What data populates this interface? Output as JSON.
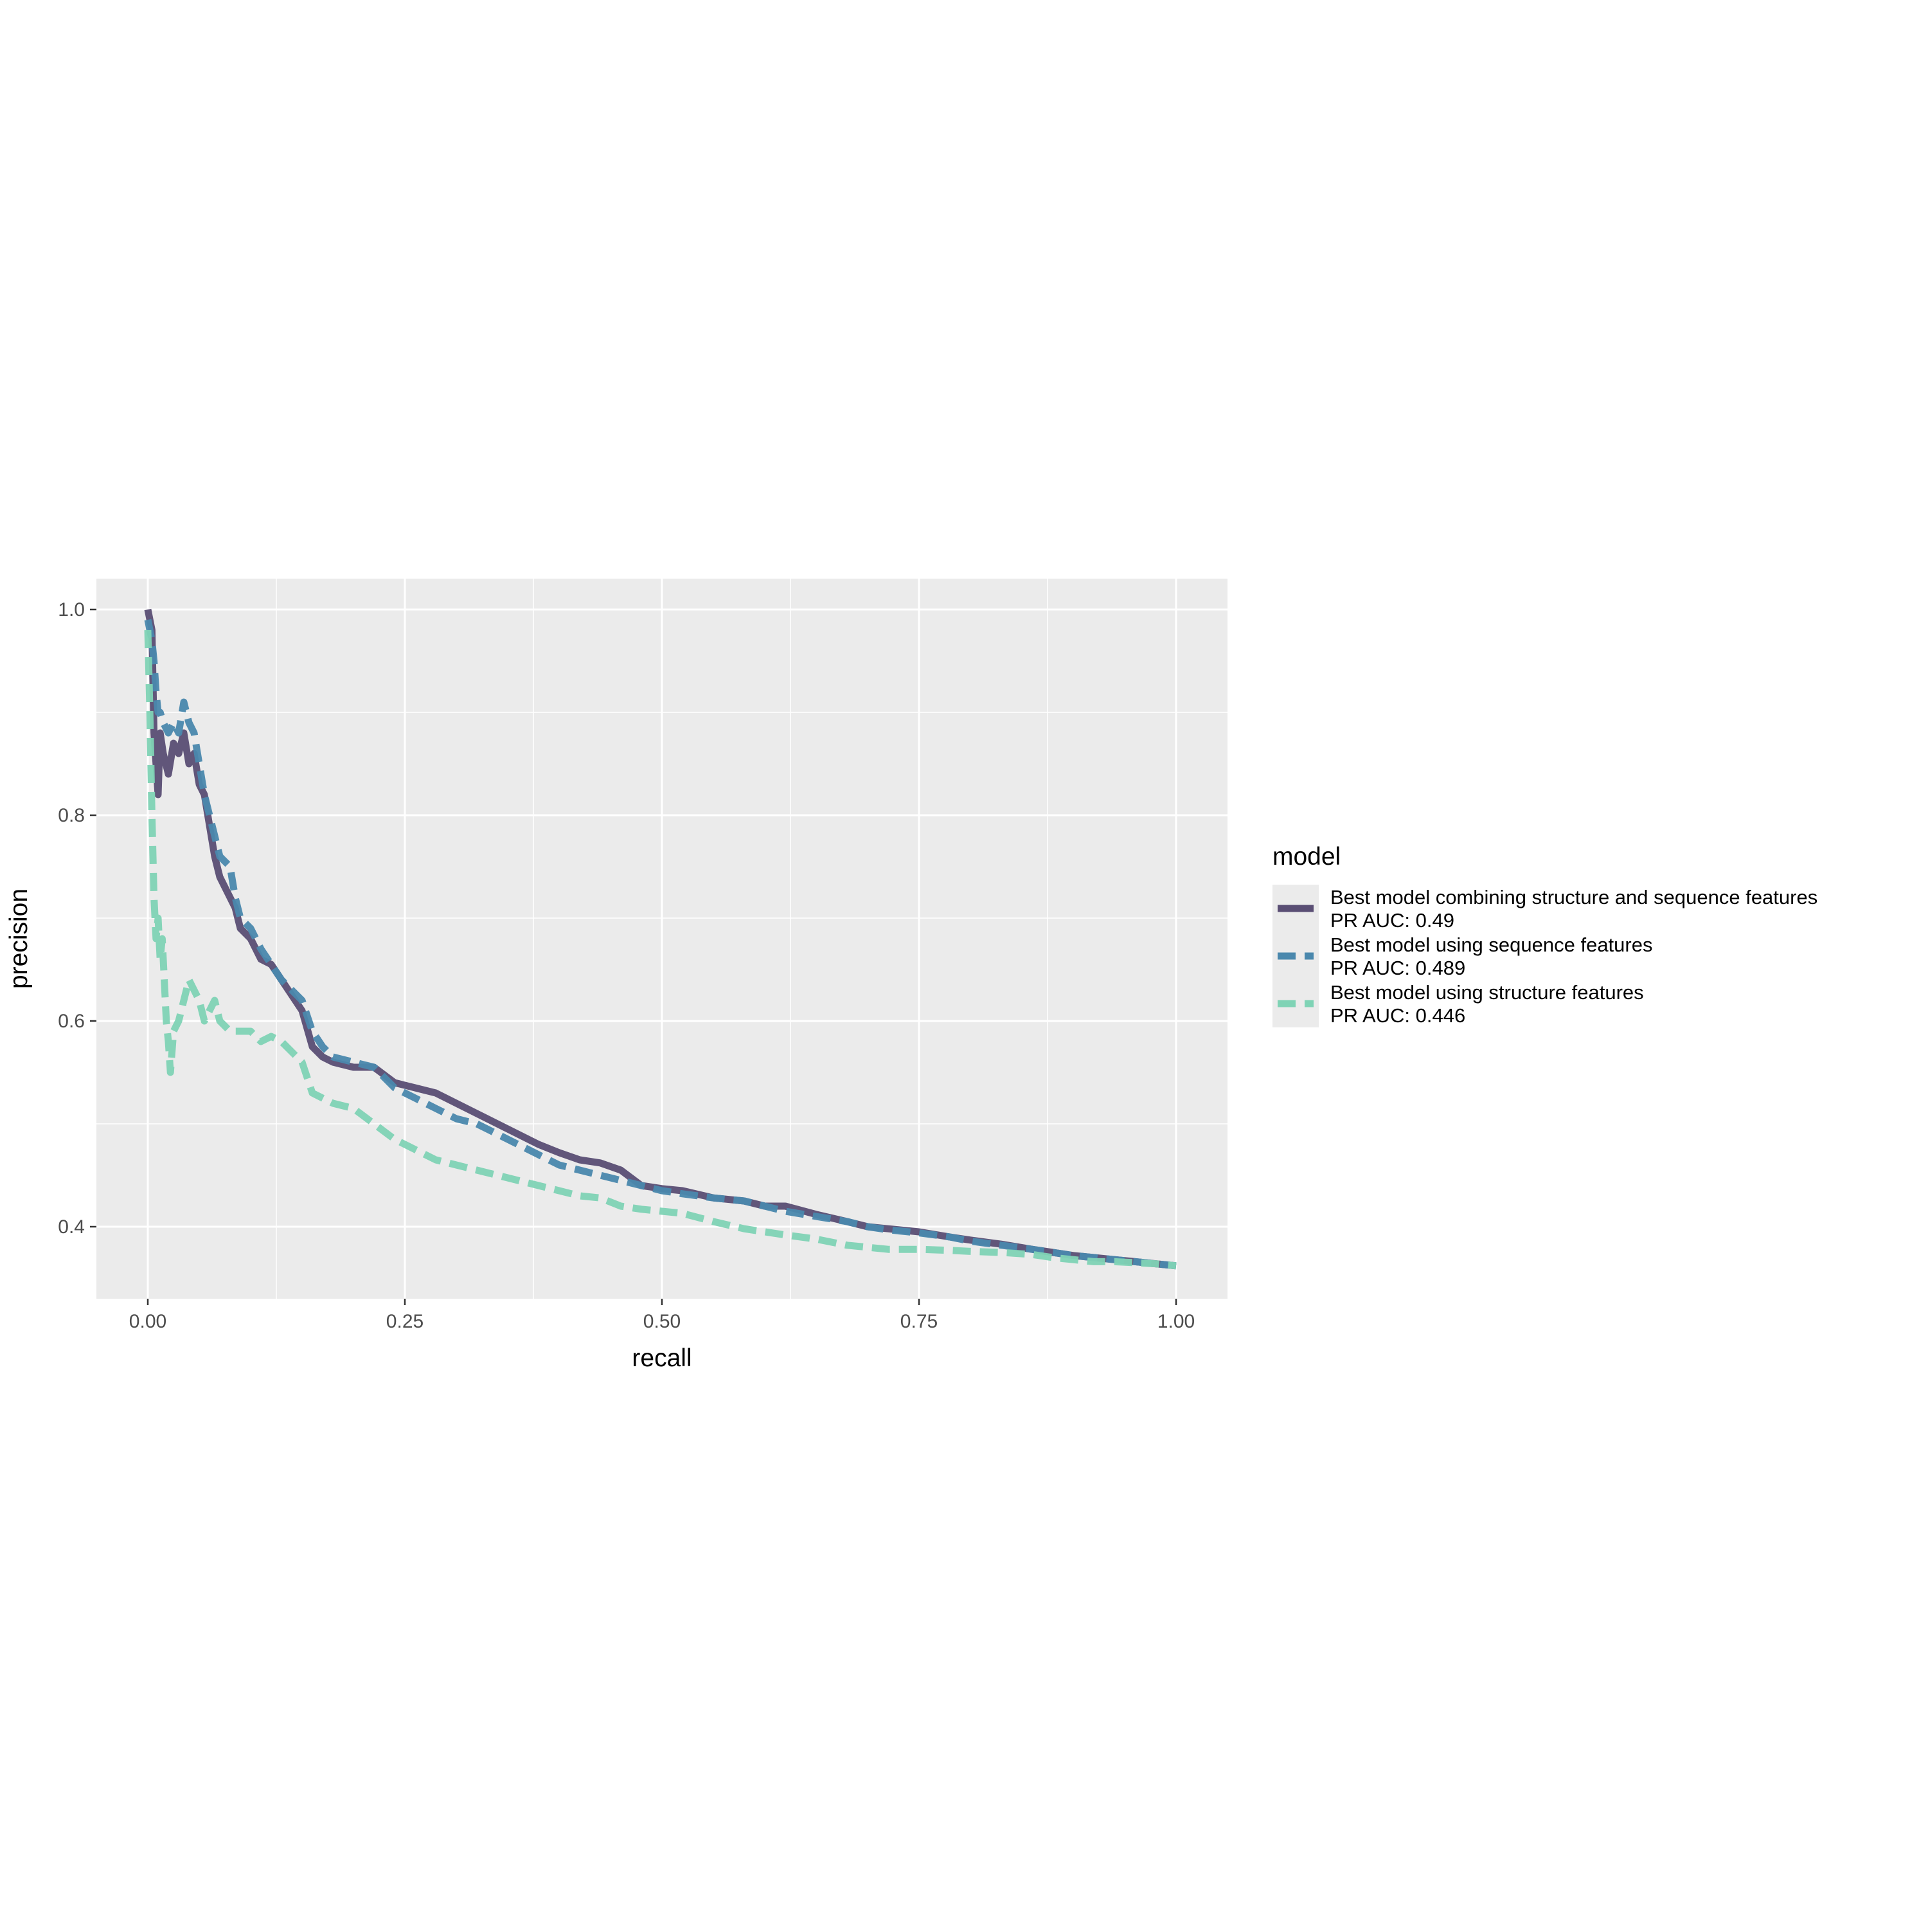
{
  "chart_data": {
    "type": "line",
    "xlabel": "recall",
    "ylabel": "precision",
    "xlim": [
      -0.05,
      1.05
    ],
    "ylim": [
      0.33,
      1.03
    ],
    "x_ticks": [
      0.0,
      0.25,
      0.5,
      0.75,
      1.0
    ],
    "x_tick_labels": [
      "0.00",
      "0.25",
      "0.50",
      "0.75",
      "1.00"
    ],
    "y_ticks": [
      0.4,
      0.6,
      0.8,
      1.0
    ],
    "y_tick_labels": [
      "0.4",
      "0.6",
      "0.8",
      "1.0"
    ],
    "grid": true,
    "background": "#ebebeb",
    "legend": {
      "title": "model",
      "placement": "right"
    },
    "series": [
      {
        "name": "Best model combining structure and sequence features",
        "auc_label": "PR AUC: 0.49",
        "color": "#5a4e74",
        "dash": "solid",
        "points": [
          [
            0.0,
            1.0
          ],
          [
            0.004,
            0.98
          ],
          [
            0.006,
            0.88
          ],
          [
            0.008,
            0.85
          ],
          [
            0.01,
            0.82
          ],
          [
            0.012,
            0.88
          ],
          [
            0.015,
            0.86
          ],
          [
            0.02,
            0.84
          ],
          [
            0.025,
            0.87
          ],
          [
            0.03,
            0.86
          ],
          [
            0.035,
            0.88
          ],
          [
            0.04,
            0.85
          ],
          [
            0.045,
            0.86
          ],
          [
            0.05,
            0.83
          ],
          [
            0.055,
            0.82
          ],
          [
            0.06,
            0.79
          ],
          [
            0.065,
            0.76
          ],
          [
            0.07,
            0.74
          ],
          [
            0.075,
            0.73
          ],
          [
            0.08,
            0.72
          ],
          [
            0.085,
            0.71
          ],
          [
            0.09,
            0.69
          ],
          [
            0.1,
            0.68
          ],
          [
            0.11,
            0.66
          ],
          [
            0.12,
            0.655
          ],
          [
            0.13,
            0.64
          ],
          [
            0.14,
            0.625
          ],
          [
            0.15,
            0.61
          ],
          [
            0.16,
            0.575
          ],
          [
            0.17,
            0.565
          ],
          [
            0.18,
            0.56
          ],
          [
            0.2,
            0.555
          ],
          [
            0.22,
            0.555
          ],
          [
            0.24,
            0.54
          ],
          [
            0.26,
            0.535
          ],
          [
            0.28,
            0.53
          ],
          [
            0.3,
            0.52
          ],
          [
            0.32,
            0.51
          ],
          [
            0.34,
            0.5
          ],
          [
            0.36,
            0.49
          ],
          [
            0.38,
            0.48
          ],
          [
            0.4,
            0.472
          ],
          [
            0.42,
            0.465
          ],
          [
            0.44,
            0.462
          ],
          [
            0.46,
            0.455
          ],
          [
            0.48,
            0.44
          ],
          [
            0.5,
            0.437
          ],
          [
            0.52,
            0.435
          ],
          [
            0.55,
            0.428
          ],
          [
            0.58,
            0.425
          ],
          [
            0.6,
            0.42
          ],
          [
            0.62,
            0.42
          ],
          [
            0.65,
            0.412
          ],
          [
            0.68,
            0.405
          ],
          [
            0.7,
            0.4
          ],
          [
            0.72,
            0.398
          ],
          [
            0.75,
            0.395
          ],
          [
            0.78,
            0.39
          ],
          [
            0.8,
            0.387
          ],
          [
            0.83,
            0.383
          ],
          [
            0.86,
            0.378
          ],
          [
            0.88,
            0.375
          ],
          [
            0.9,
            0.372
          ],
          [
            0.92,
            0.37
          ],
          [
            0.94,
            0.368
          ],
          [
            0.96,
            0.366
          ],
          [
            0.98,
            0.364
          ],
          [
            1.0,
            0.362
          ]
        ]
      },
      {
        "name": "Best model using sequence features",
        "auc_label": "PR AUC: 0.489",
        "color": "#4a88ad",
        "dash": "dashed",
        "points": [
          [
            0.0,
            0.99
          ],
          [
            0.004,
            0.97
          ],
          [
            0.006,
            0.95
          ],
          [
            0.008,
            0.92
          ],
          [
            0.01,
            0.9
          ],
          [
            0.012,
            0.9
          ],
          [
            0.015,
            0.89
          ],
          [
            0.02,
            0.88
          ],
          [
            0.025,
            0.89
          ],
          [
            0.03,
            0.88
          ],
          [
            0.035,
            0.91
          ],
          [
            0.04,
            0.89
          ],
          [
            0.045,
            0.88
          ],
          [
            0.05,
            0.85
          ],
          [
            0.055,
            0.82
          ],
          [
            0.06,
            0.8
          ],
          [
            0.065,
            0.78
          ],
          [
            0.07,
            0.76
          ],
          [
            0.075,
            0.755
          ],
          [
            0.08,
            0.75
          ],
          [
            0.085,
            0.72
          ],
          [
            0.09,
            0.7
          ],
          [
            0.1,
            0.69
          ],
          [
            0.11,
            0.67
          ],
          [
            0.12,
            0.655
          ],
          [
            0.13,
            0.64
          ],
          [
            0.14,
            0.63
          ],
          [
            0.15,
            0.62
          ],
          [
            0.16,
            0.59
          ],
          [
            0.17,
            0.575
          ],
          [
            0.18,
            0.565
          ],
          [
            0.2,
            0.56
          ],
          [
            0.22,
            0.555
          ],
          [
            0.24,
            0.535
          ],
          [
            0.26,
            0.525
          ],
          [
            0.28,
            0.515
          ],
          [
            0.3,
            0.505
          ],
          [
            0.32,
            0.5
          ],
          [
            0.34,
            0.49
          ],
          [
            0.36,
            0.48
          ],
          [
            0.38,
            0.47
          ],
          [
            0.4,
            0.46
          ],
          [
            0.42,
            0.455
          ],
          [
            0.44,
            0.45
          ],
          [
            0.46,
            0.445
          ],
          [
            0.48,
            0.44
          ],
          [
            0.5,
            0.435
          ],
          [
            0.52,
            0.432
          ],
          [
            0.55,
            0.428
          ],
          [
            0.58,
            0.425
          ],
          [
            0.6,
            0.42
          ],
          [
            0.62,
            0.415
          ],
          [
            0.65,
            0.41
          ],
          [
            0.68,
            0.405
          ],
          [
            0.7,
            0.4
          ],
          [
            0.72,
            0.397
          ],
          [
            0.75,
            0.394
          ],
          [
            0.78,
            0.39
          ],
          [
            0.8,
            0.386
          ],
          [
            0.83,
            0.382
          ],
          [
            0.86,
            0.378
          ],
          [
            0.88,
            0.375
          ],
          [
            0.9,
            0.372
          ],
          [
            0.92,
            0.37
          ],
          [
            0.94,
            0.368
          ],
          [
            0.96,
            0.366
          ],
          [
            0.98,
            0.364
          ],
          [
            1.0,
            0.362
          ]
        ]
      },
      {
        "name": "Best model using structure features",
        "auc_label": "PR AUC: 0.446",
        "color": "#7fd3b5",
        "dash": "dashed",
        "points": [
          [
            0.0,
            0.98
          ],
          [
            0.002,
            0.9
          ],
          [
            0.004,
            0.8
          ],
          [
            0.006,
            0.72
          ],
          [
            0.008,
            0.68
          ],
          [
            0.01,
            0.7
          ],
          [
            0.012,
            0.66
          ],
          [
            0.014,
            0.68
          ],
          [
            0.016,
            0.64
          ],
          [
            0.018,
            0.6
          ],
          [
            0.02,
            0.58
          ],
          [
            0.022,
            0.55
          ],
          [
            0.025,
            0.59
          ],
          [
            0.03,
            0.6
          ],
          [
            0.035,
            0.62
          ],
          [
            0.04,
            0.64
          ],
          [
            0.045,
            0.63
          ],
          [
            0.05,
            0.62
          ],
          [
            0.055,
            0.6
          ],
          [
            0.06,
            0.61
          ],
          [
            0.065,
            0.62
          ],
          [
            0.07,
            0.6
          ],
          [
            0.08,
            0.59
          ],
          [
            0.09,
            0.59
          ],
          [
            0.1,
            0.59
          ],
          [
            0.11,
            0.58
          ],
          [
            0.12,
            0.585
          ],
          [
            0.13,
            0.58
          ],
          [
            0.14,
            0.57
          ],
          [
            0.15,
            0.56
          ],
          [
            0.16,
            0.53
          ],
          [
            0.18,
            0.52
          ],
          [
            0.2,
            0.515
          ],
          [
            0.22,
            0.5
          ],
          [
            0.24,
            0.485
          ],
          [
            0.26,
            0.475
          ],
          [
            0.28,
            0.465
          ],
          [
            0.3,
            0.46
          ],
          [
            0.32,
            0.455
          ],
          [
            0.34,
            0.45
          ],
          [
            0.36,
            0.445
          ],
          [
            0.38,
            0.44
          ],
          [
            0.4,
            0.435
          ],
          [
            0.42,
            0.43
          ],
          [
            0.44,
            0.428
          ],
          [
            0.46,
            0.42
          ],
          [
            0.48,
            0.417
          ],
          [
            0.5,
            0.415
          ],
          [
            0.52,
            0.413
          ],
          [
            0.55,
            0.405
          ],
          [
            0.58,
            0.398
          ],
          [
            0.6,
            0.395
          ],
          [
            0.62,
            0.392
          ],
          [
            0.65,
            0.388
          ],
          [
            0.68,
            0.382
          ],
          [
            0.7,
            0.38
          ],
          [
            0.72,
            0.378
          ],
          [
            0.75,
            0.378
          ],
          [
            0.78,
            0.377
          ],
          [
            0.8,
            0.376
          ],
          [
            0.83,
            0.375
          ],
          [
            0.86,
            0.373
          ],
          [
            0.88,
            0.37
          ],
          [
            0.9,
            0.368
          ],
          [
            0.92,
            0.366
          ],
          [
            0.94,
            0.366
          ],
          [
            0.96,
            0.365
          ],
          [
            0.98,
            0.364
          ],
          [
            1.0,
            0.362
          ]
        ]
      }
    ]
  }
}
